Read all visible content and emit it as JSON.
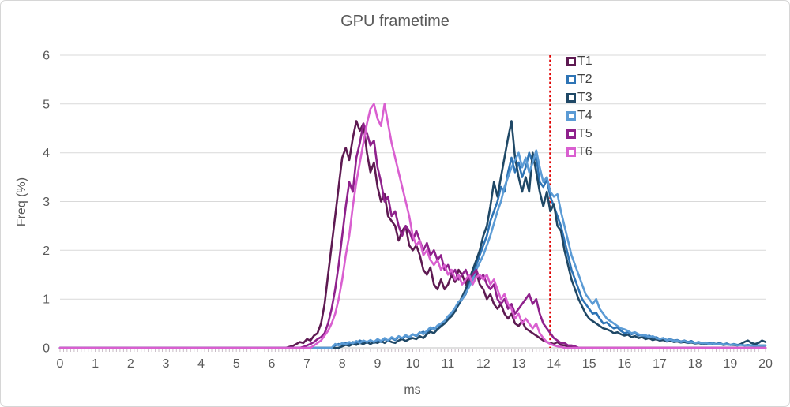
{
  "style": {
    "text_color": "#595959",
    "legend_text_color": "#404040",
    "gridline_color": "#d9d9d9",
    "axis_line_color": "#c0c0c0",
    "minor_tick_color": "#c9bcc6",
    "background": "#ffffff",
    "border_color": "#d6d6d6"
  },
  "chart_data": {
    "type": "line",
    "title": "GPU frametime",
    "xlabel": "ms",
    "ylabel": "Freq (%)",
    "xlim": [
      0,
      20
    ],
    "ylim": [
      0,
      6
    ],
    "x_ticks": [
      0,
      1,
      2,
      3,
      4,
      5,
      6,
      7,
      8,
      9,
      10,
      11,
      12,
      13,
      14,
      15,
      16,
      17,
      18,
      19,
      20
    ],
    "y_ticks": [
      0,
      1,
      2,
      3,
      4,
      5,
      6
    ],
    "x_minor_tick_step": 0.1,
    "grid": "horizontal",
    "legend_position": "top-right-inside",
    "legend_entries": [
      "T1",
      "T2",
      "T3",
      "T4",
      "T5",
      "T6"
    ],
    "reference_line": {
      "orientation": "vertical",
      "x": 13.9,
      "color": "#e00000",
      "style": "dotted"
    },
    "x_step": 0.1,
    "series_note": "values sampled every 0.1 ms starting at x_first; frequency is 0 outside the listed range",
    "series": [
      {
        "name": "T1",
        "color": "#5e1a52",
        "x_first": 6.5,
        "values": [
          0.02,
          0.04,
          0.08,
          0.12,
          0.1,
          0.18,
          0.15,
          0.25,
          0.3,
          0.5,
          0.9,
          1.5,
          2.1,
          2.7,
          3.3,
          3.9,
          4.1,
          3.85,
          4.3,
          4.65,
          4.45,
          4.6,
          4.0,
          3.6,
          3.8,
          3.3,
          3.0,
          3.15,
          2.7,
          2.6,
          2.5,
          2.2,
          2.4,
          2.5,
          2.1,
          2.0,
          2.1,
          1.9,
          1.6,
          1.5,
          1.65,
          1.3,
          1.2,
          1.4,
          1.2,
          1.3,
          1.5,
          1.35,
          1.6,
          1.5,
          1.3,
          1.5,
          1.4,
          1.55,
          1.3,
          1.2,
          1.0,
          1.1,
          0.9,
          0.8,
          0.9,
          0.7,
          0.6,
          0.7,
          0.5,
          0.45,
          0.55,
          0.4,
          0.35,
          0.3,
          0.25,
          0.2,
          0.15,
          0.12,
          0.1,
          0.08,
          0.12,
          0.06,
          0.05,
          0.03,
          0.02
        ]
      },
      {
        "name": "T2",
        "color": "#2e74b5",
        "x_first": 7.8,
        "values": [
          0.05,
          0.08,
          0.06,
          0.1,
          0.08,
          0.12,
          0.1,
          0.15,
          0.12,
          0.1,
          0.14,
          0.1,
          0.15,
          0.12,
          0.18,
          0.15,
          0.2,
          0.16,
          0.22,
          0.18,
          0.25,
          0.2,
          0.28,
          0.24,
          0.3,
          0.33,
          0.28,
          0.38,
          0.42,
          0.38,
          0.48,
          0.52,
          0.6,
          0.68,
          0.78,
          0.88,
          1.0,
          1.1,
          1.3,
          1.5,
          1.7,
          1.9,
          2.1,
          2.3,
          2.6,
          2.8,
          3.0,
          3.3,
          3.2,
          3.6,
          3.9,
          3.6,
          3.8,
          3.5,
          3.7,
          4.0,
          3.8,
          3.9,
          3.4,
          3.3,
          3.45,
          3.1,
          2.9,
          2.7,
          2.5,
          2.2,
          1.9,
          1.6,
          1.4,
          1.2,
          1.0,
          0.9,
          0.8,
          0.7,
          0.72,
          0.6,
          0.5,
          0.52,
          0.45,
          0.4,
          0.42,
          0.35,
          0.3,
          0.32,
          0.28,
          0.3,
          0.25,
          0.27,
          0.22,
          0.25,
          0.2,
          0.22,
          0.18,
          0.2,
          0.16,
          0.18,
          0.15,
          0.16,
          0.13,
          0.15,
          0.12,
          0.14,
          0.1,
          0.12,
          0.1,
          0.11,
          0.09,
          0.1,
          0.08,
          0.1,
          0.07,
          0.09,
          0.06,
          0.08,
          0.06,
          0.07,
          0.05,
          0.06,
          0.05,
          0.06,
          0.05,
          0.05,
          0.05
        ]
      },
      {
        "name": "T3",
        "color": "#1f4866",
        "x_first": 8.0,
        "values": [
          0.03,
          0.06,
          0.04,
          0.08,
          0.06,
          0.1,
          0.08,
          0.12,
          0.08,
          0.12,
          0.1,
          0.14,
          0.1,
          0.15,
          0.12,
          0.1,
          0.15,
          0.18,
          0.14,
          0.18,
          0.2,
          0.18,
          0.24,
          0.2,
          0.28,
          0.33,
          0.3,
          0.38,
          0.44,
          0.5,
          0.58,
          0.65,
          0.75,
          0.9,
          1.05,
          1.2,
          1.4,
          1.6,
          1.8,
          2.0,
          2.3,
          2.5,
          2.9,
          3.4,
          3.1,
          3.5,
          3.9,
          4.3,
          4.65,
          3.9,
          3.5,
          3.2,
          3.5,
          3.2,
          4.0,
          3.6,
          3.2,
          2.9,
          3.2,
          2.8,
          2.95,
          2.5,
          2.4,
          2.0,
          1.7,
          1.4,
          1.2,
          1.0,
          0.85,
          0.7,
          0.6,
          0.55,
          0.5,
          0.45,
          0.4,
          0.38,
          0.35,
          0.3,
          0.32,
          0.28,
          0.25,
          0.27,
          0.22,
          0.24,
          0.2,
          0.22,
          0.18,
          0.2,
          0.16,
          0.18,
          0.15,
          0.16,
          0.13,
          0.15,
          0.12,
          0.13,
          0.11,
          0.12,
          0.1,
          0.11,
          0.09,
          0.1,
          0.08,
          0.09,
          0.07,
          0.08,
          0.07,
          0.08,
          0.06,
          0.07,
          0.06,
          0.06,
          0.05,
          0.08,
          0.12,
          0.15,
          0.1,
          0.08,
          0.1,
          0.15,
          0.12
        ]
      },
      {
        "name": "T4",
        "color": "#5b9bd5",
        "x_first": 7.8,
        "values": [
          0.08,
          0.05,
          0.1,
          0.07,
          0.12,
          0.09,
          0.14,
          0.1,
          0.15,
          0.12,
          0.16,
          0.12,
          0.18,
          0.14,
          0.2,
          0.15,
          0.22,
          0.18,
          0.24,
          0.2,
          0.26,
          0.22,
          0.28,
          0.25,
          0.32,
          0.28,
          0.35,
          0.42,
          0.38,
          0.46,
          0.5,
          0.55,
          0.65,
          0.72,
          0.82,
          0.95,
          1.0,
          1.12,
          1.25,
          1.4,
          1.6,
          1.75,
          1.9,
          2.1,
          2.3,
          2.55,
          2.8,
          3.0,
          3.3,
          3.5,
          3.7,
          3.85,
          4.0,
          3.7,
          3.9,
          3.6,
          3.8,
          4.05,
          3.7,
          3.4,
          3.5,
          3.2,
          3.1,
          3.15,
          2.8,
          2.5,
          2.2,
          1.9,
          1.7,
          1.5,
          1.3,
          1.1,
          1.0,
          0.9,
          1.0,
          0.8,
          0.7,
          0.6,
          0.55,
          0.5,
          0.45,
          0.4,
          0.38,
          0.35,
          0.3,
          0.32,
          0.28,
          0.25,
          0.26,
          0.22,
          0.24,
          0.2,
          0.18,
          0.2,
          0.15,
          0.17,
          0.14,
          0.15,
          0.12,
          0.14,
          0.11,
          0.12,
          0.1,
          0.11,
          0.09,
          0.1,
          0.08,
          0.09,
          0.07,
          0.08,
          0.07,
          0.07,
          0.06,
          0.07,
          0.05,
          0.06,
          0.05,
          0.05,
          0.05,
          0.04,
          0.05,
          0.04,
          0.05
        ]
      },
      {
        "name": "T5",
        "color": "#8f218c",
        "x_first": 6.9,
        "values": [
          0.02,
          0.05,
          0.08,
          0.12,
          0.18,
          0.22,
          0.3,
          0.5,
          0.8,
          1.2,
          1.7,
          2.3,
          2.9,
          3.4,
          3.2,
          3.9,
          4.2,
          4.6,
          4.4,
          4.15,
          4.25,
          3.7,
          3.4,
          3.0,
          3.1,
          2.7,
          2.8,
          2.5,
          2.3,
          2.5,
          2.4,
          2.2,
          2.4,
          2.2,
          2.0,
          2.15,
          1.9,
          2.0,
          1.8,
          1.9,
          1.6,
          1.7,
          1.5,
          1.6,
          1.4,
          1.5,
          1.6,
          1.4,
          1.5,
          1.6,
          1.4,
          1.5,
          1.3,
          1.2,
          1.3,
          1.0,
          0.9,
          1.0,
          0.8,
          0.9,
          0.7,
          0.8,
          0.9,
          1.0,
          1.1,
          0.9,
          1.0,
          0.7,
          0.5,
          0.4,
          0.3,
          0.2,
          0.15,
          0.1,
          0.1,
          0.05,
          0.05,
          0.03
        ]
      },
      {
        "name": "T6",
        "color": "#d95fd0",
        "x_first": 7.2,
        "values": [
          0.05,
          0.1,
          0.15,
          0.25,
          0.35,
          0.5,
          0.7,
          1.0,
          1.4,
          1.9,
          2.3,
          2.9,
          3.4,
          3.8,
          4.2,
          4.6,
          4.9,
          5.0,
          4.7,
          4.55,
          5.0,
          4.6,
          4.2,
          3.9,
          3.6,
          3.3,
          3.0,
          2.7,
          2.3,
          2.1,
          2.2,
          1.9,
          2.0,
          1.8,
          1.7,
          1.8,
          1.6,
          1.7,
          1.5,
          1.6,
          1.4,
          1.5,
          1.3,
          1.4,
          1.5,
          1.3,
          1.45,
          1.5,
          1.4,
          1.5,
          1.3,
          1.4,
          1.2,
          1.0,
          1.1,
          0.9,
          0.8,
          0.6,
          0.7,
          0.5,
          0.6,
          0.5,
          0.4,
          0.5,
          0.3,
          0.2,
          0.12,
          0.08,
          0.05,
          0.03,
          0.02
        ]
      }
    ]
  }
}
